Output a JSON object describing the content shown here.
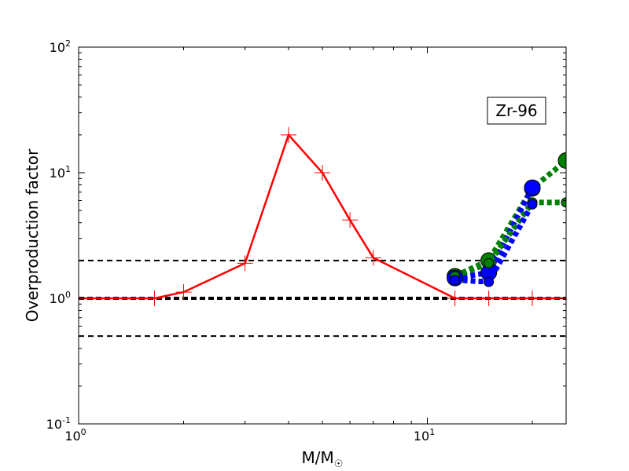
{
  "chart_data": {
    "type": "line",
    "title": "",
    "annotation": "Zr-96",
    "xlabel": "M/M",
    "xlabel_sub": "☉",
    "ylabel": "Overproduction factor",
    "x_scale": "log",
    "y_scale": "log",
    "xlim": [
      1,
      25
    ],
    "ylim": [
      0.1,
      100
    ],
    "x_ticks": [
      {
        "value": 1,
        "base": "10",
        "exp": "0"
      },
      {
        "value": 10,
        "base": "10",
        "exp": "1"
      }
    ],
    "y_ticks": [
      {
        "value": 0.1,
        "base": "10",
        "exp": "-1"
      },
      {
        "value": 1,
        "base": "10",
        "exp": "0"
      },
      {
        "value": 10,
        "base": "10",
        "exp": "1"
      },
      {
        "value": 100,
        "base": "10",
        "exp": "2"
      }
    ],
    "reference_lines": [
      {
        "y": 2,
        "style": "dashed",
        "width": "thin"
      },
      {
        "y": 1,
        "style": "dashed",
        "width": "thick"
      },
      {
        "y": 0.5,
        "style": "dashed",
        "width": "thin"
      }
    ],
    "series": [
      {
        "color": "#ff0000",
        "style": "solid",
        "marker": "plus",
        "x": [
          1,
          1.65,
          2,
          3,
          4,
          5,
          6,
          7,
          12,
          15,
          20,
          25
        ],
        "y": [
          1,
          1,
          1.12,
          1.9,
          20,
          10,
          4.2,
          2.1,
          1,
          1,
          1,
          1
        ]
      },
      {
        "color": "#0000ff",
        "style": "dotted",
        "marker": "circle-small",
        "x": [
          12,
          15,
          20
        ],
        "y": [
          1.4,
          1.35,
          5.6
        ]
      },
      {
        "color": "#0000ff",
        "style": "dotted",
        "marker": "circle-large",
        "x": [
          12,
          15,
          20
        ],
        "y": [
          1.45,
          1.6,
          7.6
        ]
      },
      {
        "color": "#008000",
        "style": "dotted",
        "marker": "circle-small",
        "x": [
          12,
          15,
          20,
          25
        ],
        "y": [
          1.5,
          1.9,
          5.8,
          5.8
        ]
      },
      {
        "color": "#008000",
        "style": "dotted",
        "marker": "circle-large",
        "x": [
          12,
          15,
          20,
          25
        ],
        "y": [
          1.5,
          2.0,
          7.5,
          12.5
        ]
      }
    ]
  }
}
